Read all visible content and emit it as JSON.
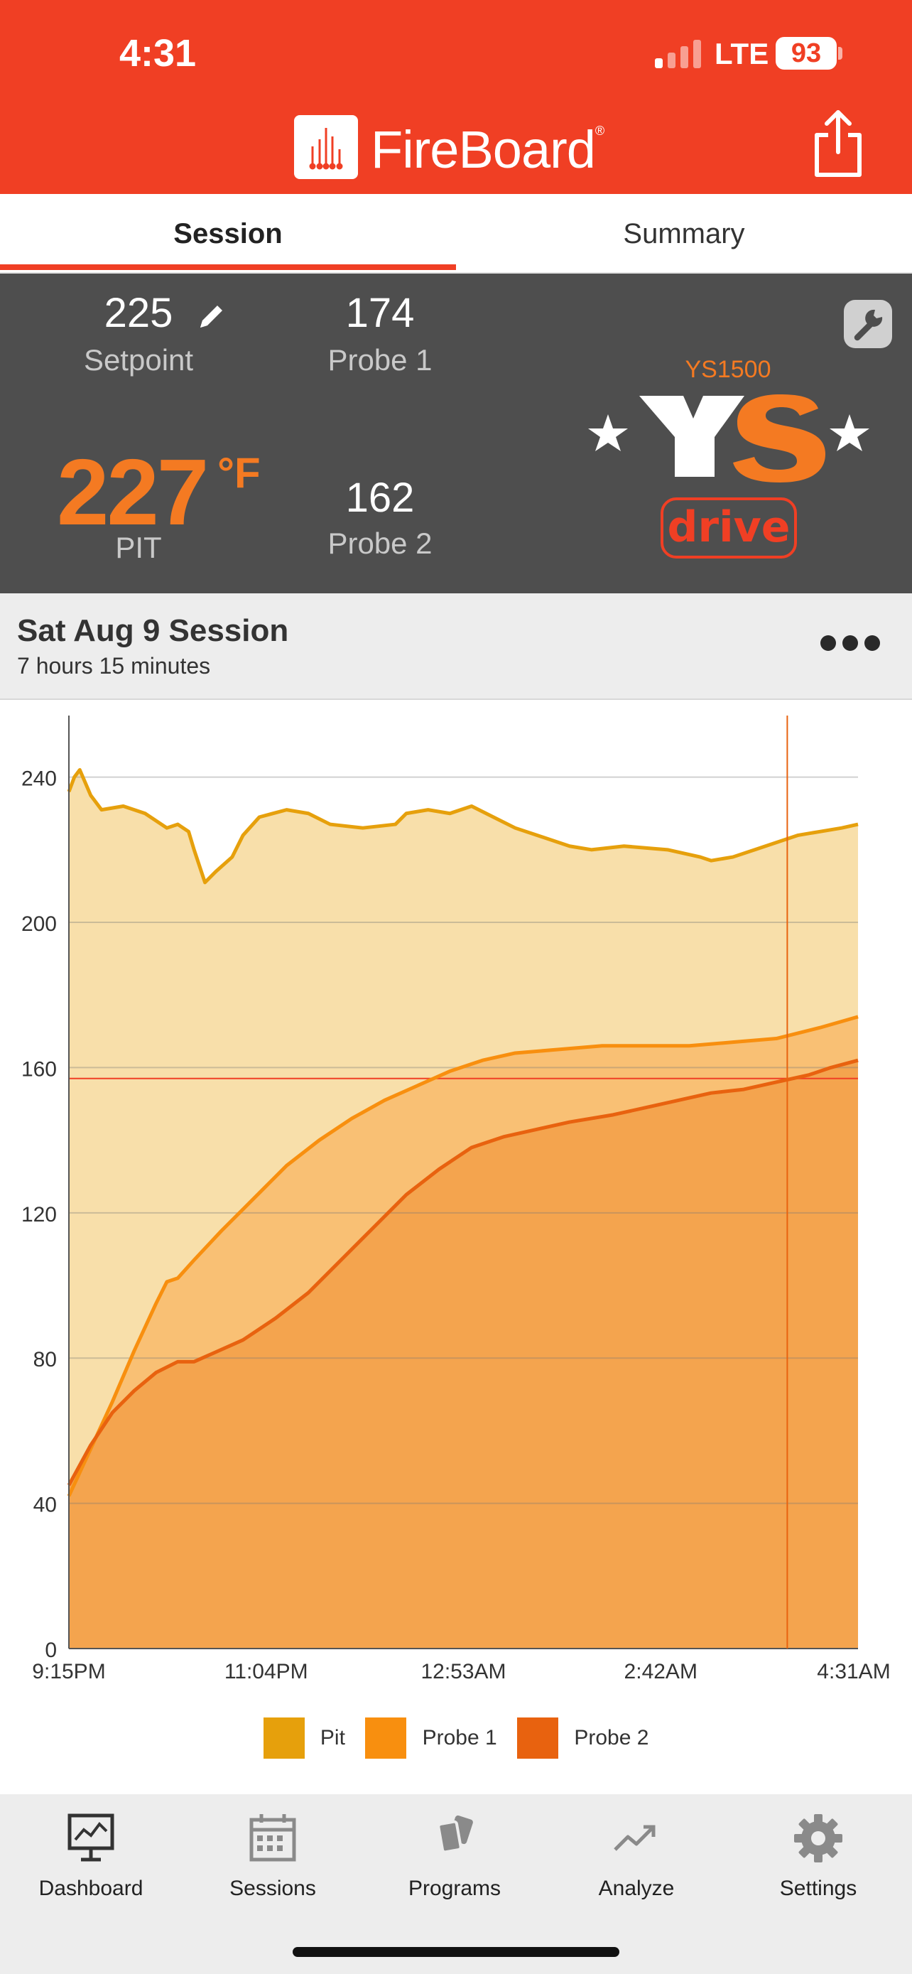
{
  "status_bar": {
    "time": "4:31",
    "network": "LTE",
    "battery": "93"
  },
  "header": {
    "app_name": "FireBoard",
    "registered": "®"
  },
  "tabs": [
    {
      "label": "Session",
      "active": true
    },
    {
      "label": "Summary",
      "active": false
    }
  ],
  "readings": {
    "setpoint": {
      "value": "225",
      "label": "Setpoint"
    },
    "pit": {
      "value": "227",
      "unit": "°F",
      "label": "PIT"
    },
    "probe1": {
      "value": "174",
      "label": "Probe 1"
    },
    "probe2": {
      "value": "162",
      "label": "Probe 2"
    },
    "controller": {
      "model": "YS1500",
      "brand": "YS",
      "drive_label": "drive"
    }
  },
  "session": {
    "title": "Sat Aug 9 Session",
    "duration": "7 hours 15 minutes"
  },
  "colors": {
    "accent": "#f03f24",
    "pit": "#e6a00c",
    "probe1": "#f88f0f",
    "probe2": "#e8620f"
  },
  "chart_data": {
    "type": "area",
    "x_tick_labels": [
      "9:15PM",
      "11:04PM",
      "12:53AM",
      "2:42AM",
      "4:31AM"
    ],
    "x_range_hours": [
      0,
      7.25
    ],
    "y_ticks": [
      0,
      40,
      80,
      120,
      160,
      200,
      240
    ],
    "ylim": [
      0,
      255
    ],
    "setpoint_line": 157,
    "cursor_x_hours": 6.6,
    "series": [
      {
        "name": "Pit",
        "color": "#e6a00c",
        "points": [
          [
            0,
            236
          ],
          [
            0.05,
            240
          ],
          [
            0.1,
            242
          ],
          [
            0.2,
            235
          ],
          [
            0.3,
            231
          ],
          [
            0.5,
            232
          ],
          [
            0.7,
            230
          ],
          [
            0.9,
            226
          ],
          [
            1.0,
            227
          ],
          [
            1.1,
            225
          ],
          [
            1.15,
            220
          ],
          [
            1.25,
            211
          ],
          [
            1.35,
            214
          ],
          [
            1.5,
            218
          ],
          [
            1.6,
            224
          ],
          [
            1.75,
            229
          ],
          [
            2.0,
            231
          ],
          [
            2.2,
            230
          ],
          [
            2.4,
            227
          ],
          [
            2.7,
            226
          ],
          [
            3.0,
            227
          ],
          [
            3.1,
            230
          ],
          [
            3.3,
            231
          ],
          [
            3.5,
            230
          ],
          [
            3.7,
            232
          ],
          [
            3.9,
            229
          ],
          [
            4.1,
            226
          ],
          [
            4.3,
            224
          ],
          [
            4.6,
            221
          ],
          [
            4.8,
            220
          ],
          [
            5.1,
            221
          ],
          [
            5.5,
            220
          ],
          [
            5.8,
            218
          ],
          [
            5.9,
            217
          ],
          [
            6.1,
            218
          ],
          [
            6.3,
            220
          ],
          [
            6.5,
            222
          ],
          [
            6.7,
            224
          ],
          [
            6.9,
            225
          ],
          [
            7.1,
            226
          ],
          [
            7.25,
            227
          ]
        ]
      },
      {
        "name": "Probe 1",
        "color": "#f88f0f",
        "points": [
          [
            0,
            42
          ],
          [
            0.2,
            55
          ],
          [
            0.4,
            68
          ],
          [
            0.6,
            82
          ],
          [
            0.8,
            95
          ],
          [
            0.9,
            101
          ],
          [
            1.0,
            102
          ],
          [
            1.15,
            107
          ],
          [
            1.4,
            115
          ],
          [
            1.6,
            121
          ],
          [
            1.8,
            127
          ],
          [
            2.0,
            133
          ],
          [
            2.3,
            140
          ],
          [
            2.6,
            146
          ],
          [
            2.9,
            151
          ],
          [
            3.2,
            155
          ],
          [
            3.5,
            159
          ],
          [
            3.8,
            162
          ],
          [
            4.1,
            164
          ],
          [
            4.5,
            165
          ],
          [
            4.9,
            166
          ],
          [
            5.3,
            166
          ],
          [
            5.7,
            166
          ],
          [
            6.1,
            167
          ],
          [
            6.5,
            168
          ],
          [
            6.9,
            171
          ],
          [
            7.25,
            174
          ]
        ]
      },
      {
        "name": "Probe 2",
        "color": "#e8620f",
        "points": [
          [
            0,
            45
          ],
          [
            0.2,
            56
          ],
          [
            0.4,
            65
          ],
          [
            0.6,
            71
          ],
          [
            0.8,
            76
          ],
          [
            1.0,
            79
          ],
          [
            1.15,
            79
          ],
          [
            1.3,
            81
          ],
          [
            1.6,
            85
          ],
          [
            1.9,
            91
          ],
          [
            2.2,
            98
          ],
          [
            2.5,
            107
          ],
          [
            2.8,
            116
          ],
          [
            3.1,
            125
          ],
          [
            3.4,
            132
          ],
          [
            3.7,
            138
          ],
          [
            4.0,
            141
          ],
          [
            4.3,
            143
          ],
          [
            4.6,
            145
          ],
          [
            5.0,
            147
          ],
          [
            5.3,
            149
          ],
          [
            5.6,
            151
          ],
          [
            5.9,
            153
          ],
          [
            6.2,
            154
          ],
          [
            6.5,
            156
          ],
          [
            6.8,
            158
          ],
          [
            7.0,
            160
          ],
          [
            7.25,
            162
          ]
        ]
      }
    ]
  },
  "legend": [
    {
      "label": "Pit"
    },
    {
      "label": "Probe 1"
    },
    {
      "label": "Probe 2"
    }
  ],
  "nav": [
    {
      "label": "Dashboard",
      "icon": "dashboard-chart-icon",
      "active": true
    },
    {
      "label": "Sessions",
      "icon": "calendar-icon",
      "active": false
    },
    {
      "label": "Programs",
      "icon": "cards-icon",
      "active": false
    },
    {
      "label": "Analyze",
      "icon": "trend-arrow-icon",
      "active": false
    },
    {
      "label": "Settings",
      "icon": "gear-icon",
      "active": false
    }
  ]
}
